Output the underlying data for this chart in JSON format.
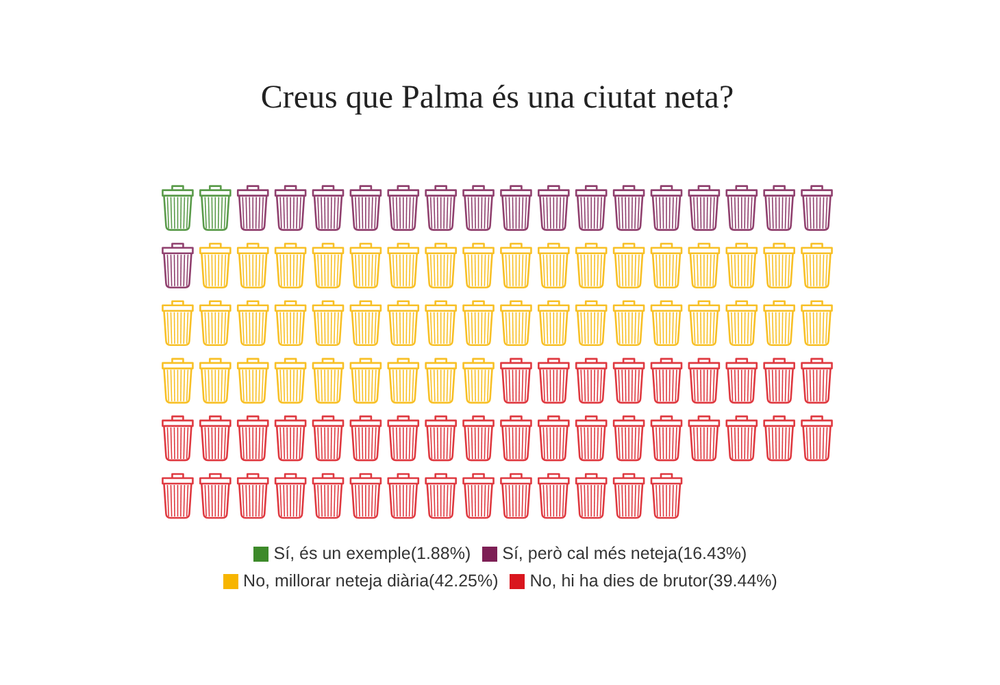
{
  "chart_data": {
    "type": "other",
    "title": "Creus que Palma és una ciutat neta?",
    "categories": [
      "Sí, és un exemple",
      "Sí, però cal més neteja",
      "No, millorar neteja diària",
      "No, hi ha dies de brutor"
    ],
    "values": [
      1.88,
      16.43,
      42.25,
      39.44
    ],
    "value_labels": [
      "(1.88%)",
      "(16.43%)",
      "(42.25%)",
      "(39.44%)"
    ],
    "colors": [
      "#3d8a2a",
      "#7d1f55",
      "#f7b500",
      "#d9161e"
    ]
  }
}
